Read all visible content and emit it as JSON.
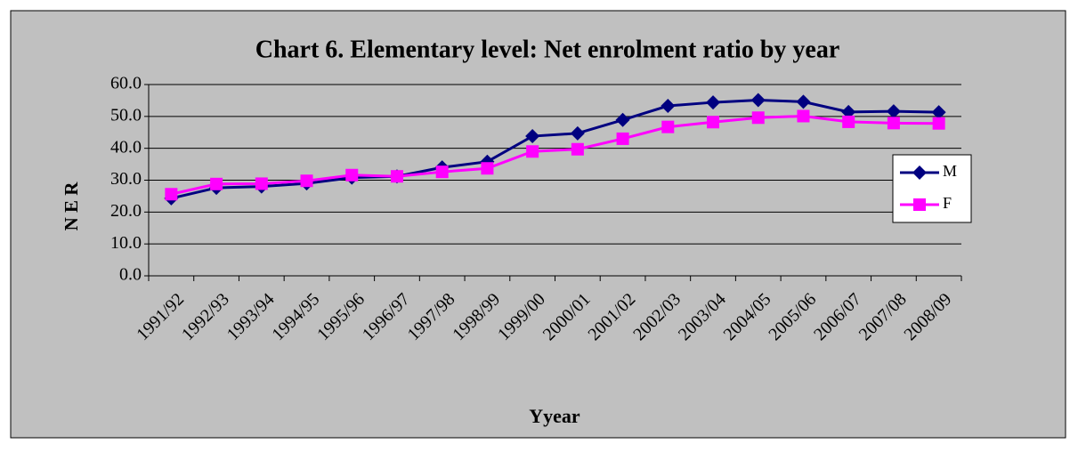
{
  "chart_data": {
    "type": "line",
    "title": "Chart 6. Elementary level: Net enrolment ratio by year",
    "x_label": "Yyear",
    "y_label": "N E R",
    "categories": [
      "1991/92",
      "1992/93",
      "1993/94",
      "1994/95",
      "1995/96",
      "1996/97",
      "1997/98",
      "1998/99",
      "1999/00",
      "2000/01",
      "2001/02",
      "2002/03",
      "2003/04",
      "2004/05",
      "2005/06",
      "2006/07",
      "2007/08",
      "2008/09"
    ],
    "series": [
      {
        "name": "M",
        "color": "#000080",
        "marker": "diamond",
        "values": [
          24.3,
          27.6,
          28.0,
          29.0,
          30.8,
          31.2,
          34.0,
          35.8,
          43.8,
          44.7,
          48.9,
          53.3,
          54.4,
          55.1,
          54.6,
          51.4,
          51.6,
          51.3
        ]
      },
      {
        "name": "F",
        "color": "#ff00ff",
        "marker": "square",
        "values": [
          25.6,
          28.8,
          28.9,
          29.8,
          31.6,
          31.2,
          32.6,
          33.7,
          39.0,
          39.7,
          43.0,
          46.7,
          48.2,
          49.6,
          50.1,
          48.3,
          47.9,
          47.8
        ]
      }
    ],
    "ylim": [
      0,
      60
    ],
    "yticks": [
      {
        "value": 0,
        "label": "0.0"
      },
      {
        "value": 10,
        "label": "10.0"
      },
      {
        "value": 20,
        "label": "20.0"
      },
      {
        "value": 30,
        "label": "30.0"
      },
      {
        "value": 40,
        "label": "40.0"
      },
      {
        "value": 50,
        "label": "50.0"
      },
      {
        "value": 60,
        "label": "60.0"
      }
    ],
    "grid": true,
    "legend": "right"
  }
}
